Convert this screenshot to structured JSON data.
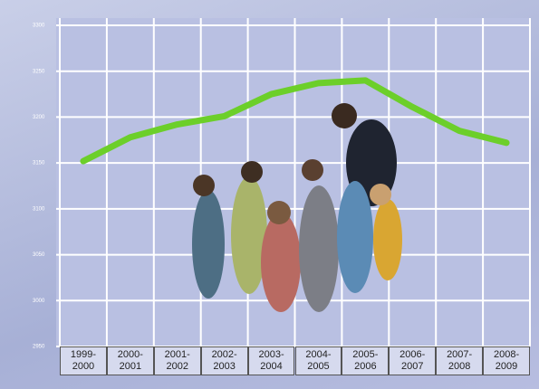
{
  "chart_data": {
    "type": "line",
    "categories": [
      "1999-2000",
      "2000-2001",
      "2001-2002",
      "2002-2003",
      "2003-2004",
      "2004-2005",
      "2005-2006",
      "2006-2007",
      "2007-2008",
      "2008-2009"
    ],
    "values": [
      3152,
      3178,
      3192,
      3201,
      3225,
      3237,
      3240,
      3211,
      3185,
      3172
    ],
    "color": "#6ccf2a",
    "ylim": [
      2950,
      3300
    ],
    "yticks": [
      2950,
      3000,
      3050,
      3100,
      3150,
      3200,
      3250,
      3300
    ],
    "grid": true
  }
}
